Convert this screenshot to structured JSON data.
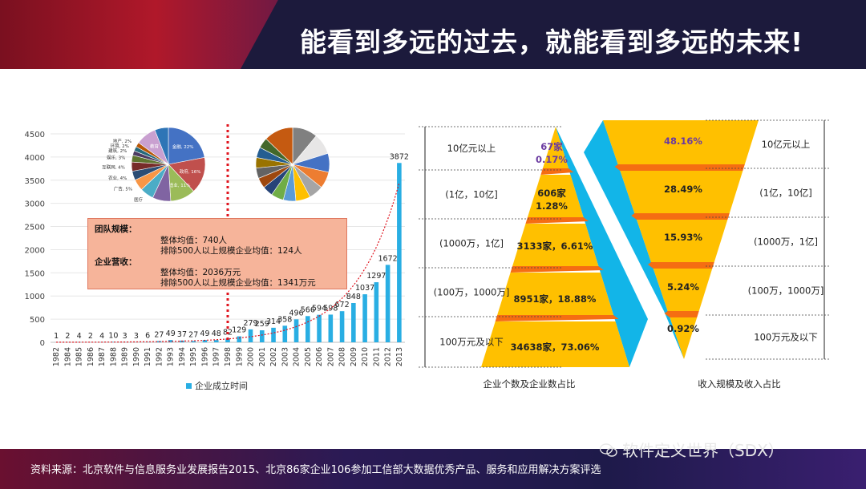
{
  "title": "能看到多远的过去，就能看到多远的未来!",
  "footer": {
    "note": "资料来源：北京软件与信息服务业发展报告2015、北京86家企业106参加工信部大数据优秀产品、服务和应用解决方案评选",
    "watermark": "软件定义世界（SDX）"
  },
  "infobox": {
    "team_heading": "团队规模：",
    "team_avg": "整体均值：740人",
    "team_excl": "排除500人以上规模企业均值：124人",
    "rev_heading": "企业营收：",
    "rev_avg": "整体均值：2036万元",
    "rev_excl": "排除500人以上规模企业均值：1341万元"
  },
  "colors": {
    "bar": "#29aee3",
    "pyramid": "#ffc000",
    "pyramid_side": "#12b5e8",
    "pyramid_band": "#f56d12",
    "label_purple": "#6a3aa0"
  },
  "chart_data": [
    {
      "type": "bar",
      "name": "enterprise-founding-year",
      "categories": [
        "1982",
        "1984",
        "1985",
        "1986",
        "1987",
        "1988",
        "1989",
        "1990",
        "1991",
        "1992",
        "1993",
        "1994",
        "1995",
        "1996",
        "1997",
        "1998",
        "1999",
        "2000",
        "2001",
        "2002",
        "2003",
        "2004",
        "2005",
        "2006",
        "2007",
        "2008",
        "2009",
        "2010",
        "2011",
        "2012",
        "2013"
      ],
      "values": [
        1,
        2,
        4,
        2,
        4,
        10,
        3,
        3,
        6,
        27,
        49,
        37,
        27,
        49,
        48,
        82,
        129,
        279,
        259,
        314,
        358,
        496,
        566,
        594,
        598,
        672,
        848,
        1037,
        1297,
        1672,
        3872
      ],
      "ylim": [
        0,
        4500
      ],
      "yticks": [
        0,
        500,
        1000,
        1500,
        2000,
        2500,
        3000,
        3500,
        4000,
        4500
      ],
      "legend": "企业成立时间",
      "trendline": "exponential"
    },
    {
      "type": "pie",
      "name": "industry-distribution-left",
      "slices": [
        {
          "label": "金融, 22%",
          "value": 22,
          "color": "#4472c4"
        },
        {
          "label": "政府, 16%",
          "value": 16,
          "color": "#c0504d"
        },
        {
          "label": "制造业, 11%",
          "value": 11,
          "color": "#9bbb59"
        },
        {
          "label": "",
          "value": 8,
          "color": "#8064a2"
        },
        {
          "label": "医疗",
          "value": 6,
          "color": "#4bacc6"
        },
        {
          "label": "广告, 5%",
          "value": 5,
          "color": "#f79646"
        },
        {
          "label": "农业, 4%",
          "value": 4,
          "color": "#2c4d75"
        },
        {
          "label": "互联网, 4%",
          "value": 4,
          "color": "#772c2a"
        },
        {
          "label": "娱乐, 3%",
          "value": 3,
          "color": "#5f7530"
        },
        {
          "label": "建筑, 2%",
          "value": 2,
          "color": "#4d3b62"
        },
        {
          "label": "环境, 2%",
          "value": 2,
          "color": "#276a7c"
        },
        {
          "label": "地产, 2%",
          "value": 2,
          "color": "#b65708"
        },
        {
          "label": "教育",
          "value": 9,
          "color": "#c9a0d0"
        },
        {
          "label": "",
          "value": 6,
          "color": "#2e75b6"
        }
      ]
    },
    {
      "type": "pie",
      "name": "industry-distribution-right",
      "slices": [
        {
          "label": "",
          "value": 12,
          "color": "#808080"
        },
        {
          "label": "",
          "value": 10,
          "color": "#e7e6e6"
        },
        {
          "label": "",
          "value": 9,
          "color": "#4472c4"
        },
        {
          "label": "",
          "value": 8,
          "color": "#ed7d31"
        },
        {
          "label": "",
          "value": 7,
          "color": "#a5a5a5"
        },
        {
          "label": "",
          "value": 7,
          "color": "#ffc000"
        },
        {
          "label": "",
          "value": 6,
          "color": "#5b9bd5"
        },
        {
          "label": "",
          "value": 6,
          "color": "#70ad47"
        },
        {
          "label": "",
          "value": 5,
          "color": "#264478"
        },
        {
          "label": "",
          "value": 5,
          "color": "#9e480e"
        },
        {
          "label": "",
          "value": 5,
          "color": "#636363"
        },
        {
          "label": "",
          "value": 5,
          "color": "#997300"
        },
        {
          "label": "",
          "value": 5,
          "color": "#255e91"
        },
        {
          "label": "",
          "value": 5,
          "color": "#43682b"
        },
        {
          "label": "",
          "value": 14,
          "color": "#c55a11"
        }
      ]
    },
    {
      "type": "pyramid",
      "name": "enterprise-count-share",
      "caption": "企业个数及企业数占比",
      "tiers": [
        {
          "range": "10亿元以上",
          "label": "67家\n0.17%",
          "count": 67,
          "percent": 0.17
        },
        {
          "range": "(1亿，10亿]",
          "label": "606家\n1.28%",
          "count": 606,
          "percent": 1.28
        },
        {
          "range": "(1000万，1亿]",
          "label": "3133家，6.61%",
          "count": 3133,
          "percent": 6.61
        },
        {
          "range": "(100万，1000万]",
          "label": "8951家，18.88%",
          "count": 8951,
          "percent": 18.88
        },
        {
          "range": "100万元及以下",
          "label": "34638家，73.06%",
          "count": 34638,
          "percent": 73.06
        }
      ]
    },
    {
      "type": "funnel",
      "name": "revenue-scale-share",
      "caption": "收入规模及收入占比",
      "tiers": [
        {
          "range": "10亿元以上",
          "label": "48.16%",
          "percent": 48.16
        },
        {
          "range": "(1亿，10亿]",
          "label": "28.49%",
          "percent": 28.49
        },
        {
          "range": "(1000万，1亿]",
          "label": "15.93%",
          "percent": 15.93
        },
        {
          "range": "(100万，1000万]",
          "label": "5.24%",
          "percent": 5.24
        },
        {
          "range": "100万元及以下",
          "label": "0.92%",
          "percent": 0.92
        }
      ]
    }
  ]
}
